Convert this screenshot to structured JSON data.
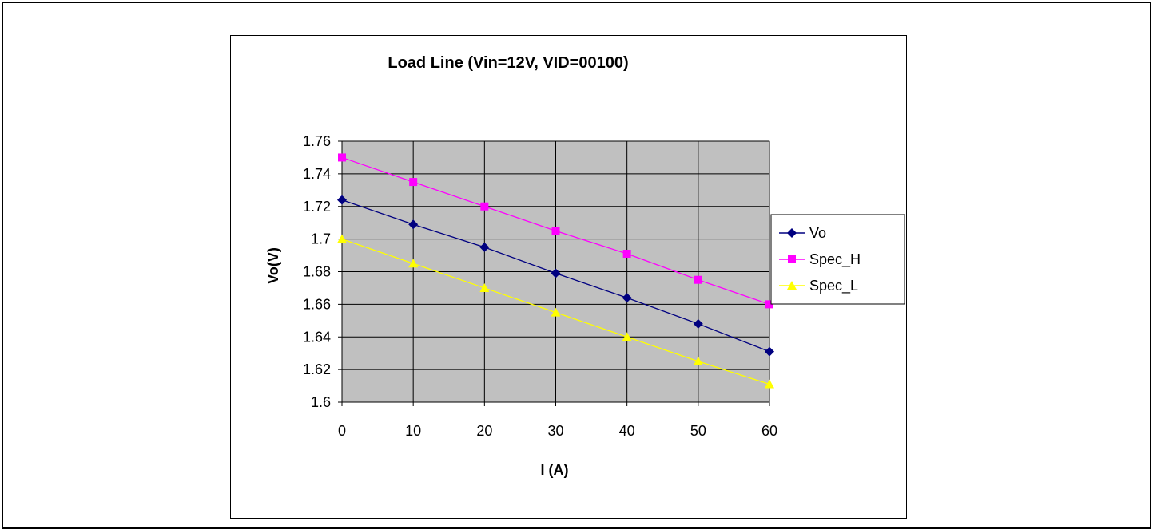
{
  "chart_data": {
    "type": "line",
    "title": "Load Line (Vin=12V, VID=00100)",
    "xlabel": "I (A)",
    "ylabel": "Vo(V)",
    "x": [
      0,
      10,
      20,
      30,
      40,
      50,
      60
    ],
    "xlim": [
      0,
      60
    ],
    "ylim": [
      1.6,
      1.76
    ],
    "x_ticks": [
      "0",
      "10",
      "20",
      "30",
      "40",
      "50",
      "60"
    ],
    "y_ticks": [
      "1.6",
      "1.62",
      "1.64",
      "1.66",
      "1.68",
      "1.7",
      "1.72",
      "1.74",
      "1.76"
    ],
    "grid": true,
    "plot_background": "#c0c0c0",
    "legend_position": "right",
    "series": [
      {
        "name": "Vo",
        "values": [
          1.724,
          1.709,
          1.695,
          1.679,
          1.664,
          1.648,
          1.631
        ],
        "color": "#000080",
        "marker": "diamond"
      },
      {
        "name": "Spec_H",
        "values": [
          1.75,
          1.735,
          1.72,
          1.705,
          1.691,
          1.675,
          1.66
        ],
        "color": "#ff00ff",
        "marker": "square"
      },
      {
        "name": "Spec_L",
        "values": [
          1.7,
          1.685,
          1.67,
          1.655,
          1.64,
          1.625,
          1.611
        ],
        "color": "#ffff00",
        "marker": "triangle"
      }
    ]
  }
}
